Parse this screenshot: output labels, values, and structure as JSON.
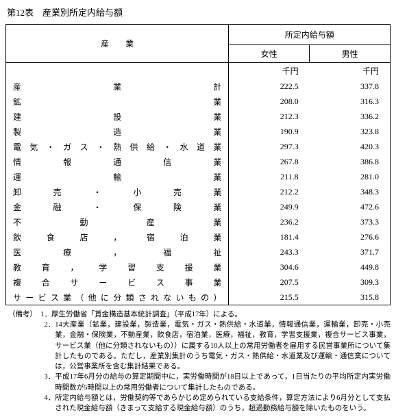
{
  "title": "第12表　産業別所定内給与額",
  "header": {
    "industry": "産業",
    "amount": "所定内給与額",
    "female": "女性",
    "male": "男性",
    "unit": "千円"
  },
  "rows": [
    {
      "industry": "産業計",
      "female": "222.5",
      "male": "337.8"
    },
    {
      "industry": "鉱業",
      "female": "208.0",
      "male": "316.3"
    },
    {
      "industry": "建設業",
      "female": "212.3",
      "male": "336.2"
    },
    {
      "industry": "製造業",
      "female": "190.9",
      "male": "323.8"
    },
    {
      "industry": "電気・ガス・熱供給・水道業",
      "female": "297.3",
      "male": "420.3"
    },
    {
      "industry": "情報通信業",
      "female": "267.8",
      "male": "386.8"
    },
    {
      "industry": "運輸業",
      "female": "211.8",
      "male": "281.0"
    },
    {
      "industry": "卸売・小売業",
      "female": "212.2",
      "male": "348.3"
    },
    {
      "industry": "金融・保険業",
      "female": "249.9",
      "male": "472.6"
    },
    {
      "industry": "不動産業",
      "female": "236.2",
      "male": "373.3"
    },
    {
      "industry": "飲食店，宿泊業",
      "female": "181.4",
      "male": "276.6"
    },
    {
      "industry": "医療，福祉",
      "female": "243.3",
      "male": "371.7"
    },
    {
      "industry": "教育，学習支援業",
      "female": "304.6",
      "male": "449.8"
    },
    {
      "industry": "複合サービス事業",
      "female": "207.5",
      "male": "309.3"
    },
    {
      "industry": "サービス業（他に分類されないもの）",
      "female": "215.5",
      "male": "315.8"
    }
  ],
  "notes": {
    "prefix": "（備考）",
    "items": [
      {
        "num": "1．",
        "text": "厚生労働省「賃金構造基本統計調査」（平成17年）による。"
      },
      {
        "num": "2．",
        "text": "14大産業（鉱業，建設業，製造業，電気・ガス・熱供給・水道業，情報通信業，運輸業，卸売・小売業，金融・保険業，不動産業，飲食店，宿泊業，医療，福祉，教育，学習支援業，複合サービス事業，サービス業（他に分類されないもの））に属する10人以上の常用労働者を雇用する民営事業所について集計したものである。ただし，産業別集計のうち電気・ガス・熱供給・水道業及び運輸・通信業については，公営事業所を含む集計結果である。"
      },
      {
        "num": "3．",
        "text": "平成17年6月分の給与の算定期間中に，実労働時間が18日以上であって，1日当たりの平均所定内実労働時間数が5時間以上の常用労働者について集計したものである。"
      },
      {
        "num": "4．",
        "text": "所定内給与額とは，労働契約等であらかじめ定められている支給条件，算定方法により6月分として支払された現金給与額（きまって支給する現金給与額）のうち，超過勤務給与額を除いたものをいう。"
      }
    ]
  }
}
